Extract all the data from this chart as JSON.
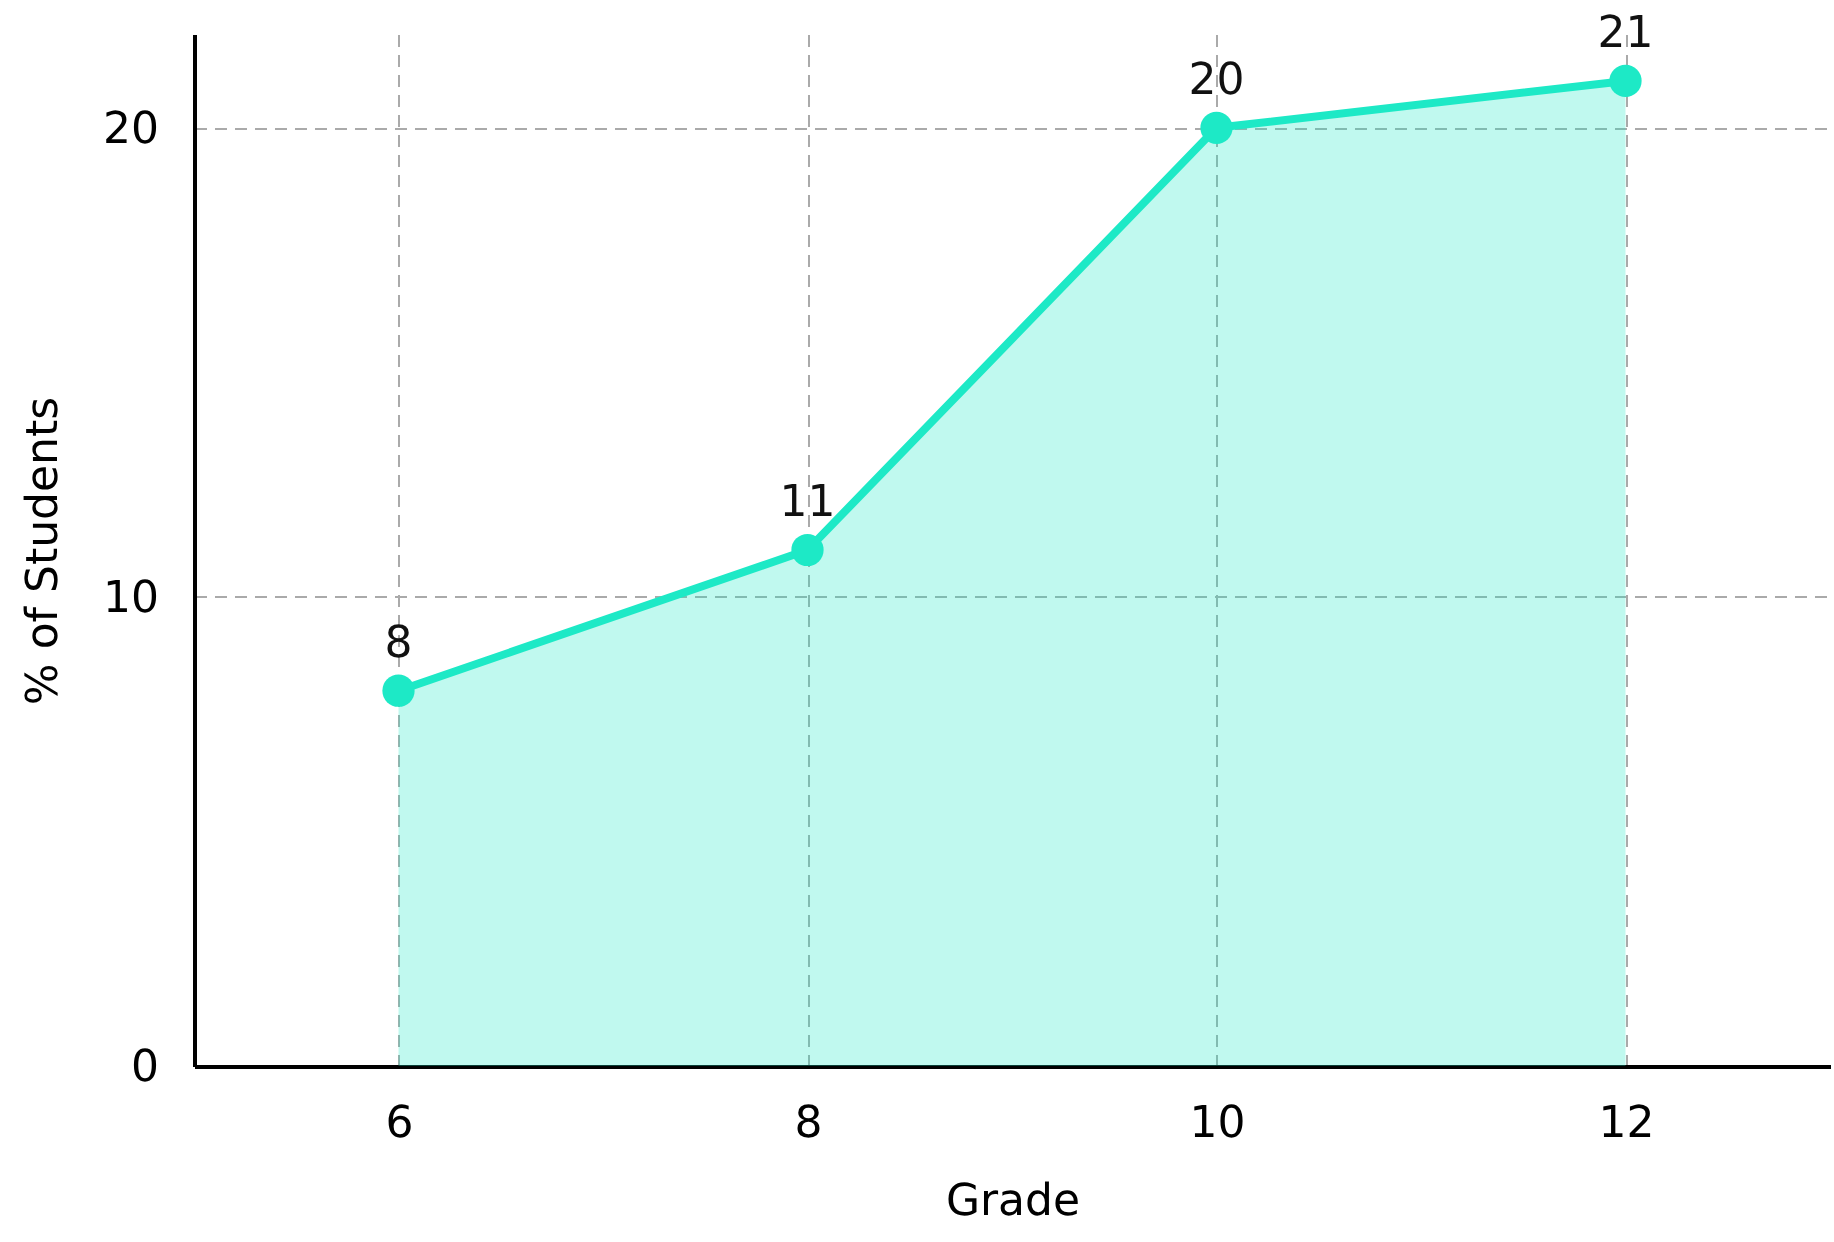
{
  "chart_data": {
    "type": "area",
    "xlabel": "Grade",
    "ylabel": "% of Students",
    "x": [
      6,
      8,
      10,
      12
    ],
    "series": [
      {
        "color": "#1de9c6",
        "values": [
          8,
          11,
          20,
          21
        ]
      }
    ],
    "xlim": [
      5,
      13
    ],
    "ylim": [
      0,
      22
    ],
    "xticks": [
      6,
      8,
      10,
      12
    ],
    "yticks": [
      0,
      10,
      20
    ],
    "grid": true,
    "marker": "circle",
    "line_style": "solid",
    "data_labels": true
  }
}
